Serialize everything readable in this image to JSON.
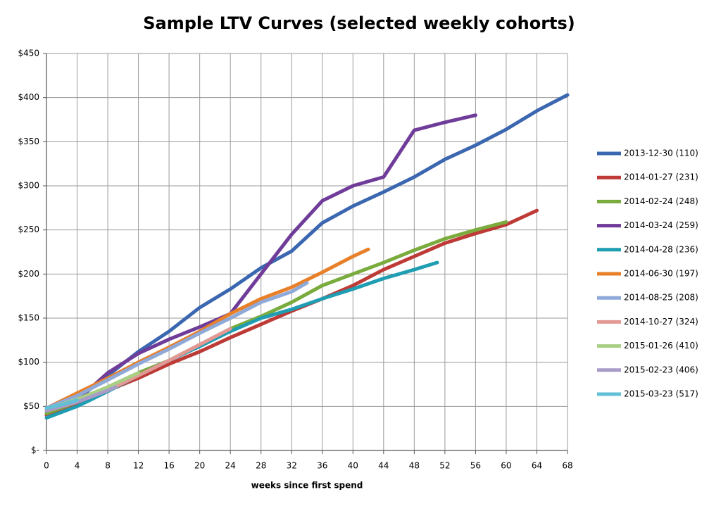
{
  "chart_data": {
    "type": "line",
    "title": "Sample LTV Curves (selected weekly cohorts)",
    "x_label": "weeks since first spend",
    "xlim": [
      0,
      68
    ],
    "xticks": [
      0,
      4,
      8,
      12,
      16,
      20,
      24,
      28,
      32,
      36,
      40,
      44,
      48,
      52,
      56,
      60,
      64,
      68
    ],
    "ylim": [
      0,
      450
    ],
    "yticks": [
      {
        "value": 0,
        "label": "$-"
      },
      {
        "value": 50,
        "label": "$50"
      },
      {
        "value": 100,
        "label": "$100"
      },
      {
        "value": 150,
        "label": "$150"
      },
      {
        "value": 200,
        "label": "$200"
      },
      {
        "value": 250,
        "label": "$250"
      },
      {
        "value": 300,
        "label": "$300"
      },
      {
        "value": 350,
        "label": "$350"
      },
      {
        "value": 400,
        "label": "$400"
      },
      {
        "value": 450,
        "label": "$450"
      }
    ],
    "grid": true,
    "legend": "right",
    "series": [
      {
        "name": "2013-12-30 (110)",
        "color": "#3b67b0",
        "x": [
          0,
          4,
          8,
          12,
          16,
          20,
          24,
          28,
          32,
          36,
          40,
          44,
          48,
          52,
          56,
          60,
          64,
          68
        ],
        "values": [
          45,
          58,
          85,
          112,
          135,
          162,
          183,
          207,
          226,
          258,
          277,
          293,
          310,
          330,
          346,
          364,
          385,
          403
        ]
      },
      {
        "name": "2014-01-27 (231)",
        "color": "#bd3a36",
        "x": [
          0,
          4,
          8,
          12,
          16,
          20,
          24,
          28,
          32,
          36,
          40,
          44,
          48,
          52,
          56,
          60,
          64
        ],
        "values": [
          40,
          52,
          68,
          82,
          98,
          112,
          128,
          143,
          158,
          172,
          187,
          205,
          220,
          235,
          246,
          256,
          272
        ]
      },
      {
        "name": "2014-02-24 (248)",
        "color": "#7aab3d",
        "x": [
          0,
          4,
          8,
          12,
          16,
          20,
          24,
          28,
          32,
          36,
          40,
          44,
          48,
          52,
          56,
          60
        ],
        "values": [
          42,
          55,
          70,
          88,
          102,
          120,
          138,
          152,
          168,
          187,
          200,
          213,
          227,
          240,
          250,
          259
        ]
      },
      {
        "name": "2014-03-24 (259)",
        "color": "#6f3c99",
        "x": [
          0,
          4,
          8,
          12,
          16,
          20,
          24,
          28,
          32,
          36,
          40,
          44,
          48,
          52,
          56
        ],
        "values": [
          45,
          57,
          88,
          110,
          126,
          140,
          155,
          200,
          245,
          283,
          300,
          310,
          363,
          372,
          380
        ]
      },
      {
        "name": "2014-04-28 (236)",
        "color": "#1f9db2",
        "x": [
          0,
          4,
          8,
          12,
          16,
          20,
          24,
          28,
          32,
          36,
          40,
          44,
          48,
          51
        ],
        "values": [
          37,
          50,
          67,
          85,
          102,
          118,
          135,
          150,
          160,
          172,
          183,
          195,
          205,
          213
        ]
      },
      {
        "name": "2014-06-30 (197)",
        "color": "#e8802a",
        "x": [
          0,
          4,
          8,
          12,
          16,
          20,
          24,
          28,
          32,
          36,
          40,
          42
        ],
        "values": [
          48,
          65,
          82,
          100,
          117,
          135,
          155,
          172,
          185,
          202,
          220,
          228
        ]
      },
      {
        "name": "2014-08-25 (208)",
        "color": "#8fa9d8",
        "x": [
          0,
          4,
          8,
          12,
          16,
          20,
          24,
          28,
          32,
          34
        ],
        "values": [
          48,
          62,
          80,
          98,
          115,
          133,
          150,
          168,
          180,
          190
        ]
      },
      {
        "name": "2014-10-27 (324)",
        "color": "#e39893",
        "x": [
          0,
          4,
          8,
          12,
          16,
          20,
          24
        ],
        "values": [
          45,
          55,
          68,
          85,
          102,
          120,
          138
        ]
      },
      {
        "name": "2015-01-26 (410)",
        "color": "#a8cf84",
        "x": [
          0,
          4,
          8,
          12
        ],
        "values": [
          47,
          58,
          72,
          88
        ]
      },
      {
        "name": "2015-02-23 (406)",
        "color": "#a99bc8",
        "x": [
          0,
          4,
          8,
          9
        ],
        "values": [
          45,
          55,
          68,
          72
        ]
      },
      {
        "name": "2015-03-23 (517)",
        "color": "#62c0d6",
        "x": [
          0,
          2,
          4
        ],
        "values": [
          48,
          52,
          57
        ]
      }
    ]
  }
}
